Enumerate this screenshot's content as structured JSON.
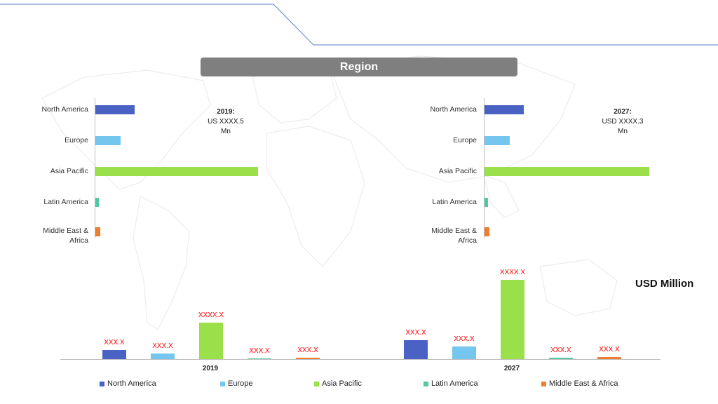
{
  "header": {
    "title": "Region"
  },
  "unit_label": "USD Million",
  "notes": {
    "left": {
      "year": "2019:",
      "line1": "US XXXX.5",
      "line2": "Mn"
    },
    "right": {
      "year": "2027:",
      "line1": "USD XXXX.3",
      "line2": "Mn"
    }
  },
  "colors": {
    "north_america": "#4a62c4",
    "europe": "#74c6ee",
    "asia_pacific": "#99e04a",
    "latin_america": "#52c9a5",
    "mea": "#f07c30"
  },
  "chart_data": [
    {
      "type": "bar",
      "orientation": "horizontal",
      "title": "",
      "categories": [
        "North America",
        "Europe",
        "Asia Pacific",
        "Latin America",
        "Middle East & Africa"
      ],
      "category_lines": [
        [
          "North America"
        ],
        [
          "Europe"
        ],
        [
          "Asia Pacific"
        ],
        [
          "Latin America"
        ],
        [
          "Middle East &",
          "Africa"
        ]
      ],
      "series": [
        {
          "name": "2019",
          "values": [
            56,
            36,
            232,
            5,
            7
          ]
        }
      ],
      "annotation": "2019: US XXXX.5 Mn",
      "grid": false
    },
    {
      "type": "bar",
      "orientation": "horizontal",
      "title": "",
      "categories": [
        "North America",
        "Europe",
        "Asia Pacific",
        "Latin America",
        "Middle East & Africa"
      ],
      "category_lines": [
        [
          "North America"
        ],
        [
          "Europe"
        ],
        [
          "Asia Pacific"
        ],
        [
          "Latin America"
        ],
        [
          "Middle East &",
          "Africa"
        ]
      ],
      "series": [
        {
          "name": "2027",
          "values": [
            56,
            36,
            235,
            5,
            7
          ]
        }
      ],
      "annotation": "2027: USD XXXX.3 Mn",
      "grid": false
    },
    {
      "type": "bar",
      "orientation": "vertical",
      "ylabel": "USD Million",
      "categories": [
        "2019",
        "2027"
      ],
      "series": [
        {
          "name": "North America",
          "values": [
            13,
            27
          ],
          "labels": [
            "XXX.X",
            "XXX.X"
          ]
        },
        {
          "name": "Europe",
          "values": [
            8,
            18
          ],
          "labels": [
            "XXX.X",
            "XXX.X"
          ]
        },
        {
          "name": "Asia Pacific",
          "values": [
            52,
            113
          ],
          "labels": [
            "XXXX.X",
            "XXXX.X"
          ]
        },
        {
          "name": "Latin America",
          "values": [
            1,
            2
          ],
          "labels": [
            "XXX.X",
            "XXX.X"
          ]
        },
        {
          "name": "Middle East & Africa",
          "values": [
            2,
            3
          ],
          "labels": [
            "XXX.X",
            "XXX.X"
          ]
        }
      ],
      "legend": "bottom",
      "grid": false
    }
  ]
}
